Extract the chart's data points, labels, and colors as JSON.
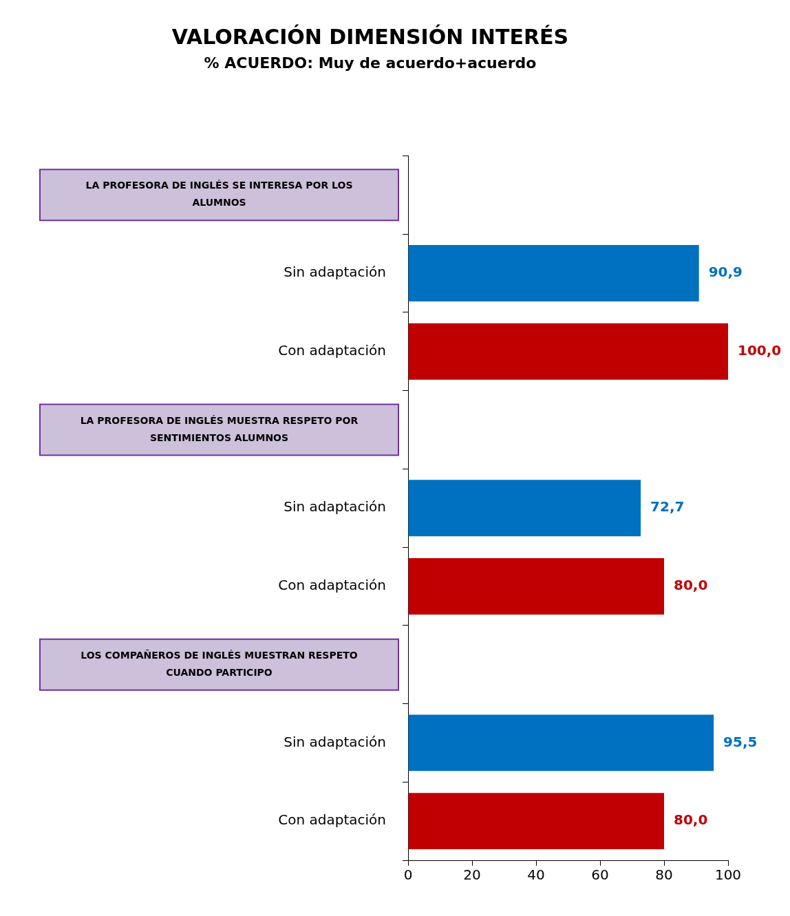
{
  "chart_data": {
    "type": "bar",
    "orientation": "horizontal",
    "title": "VALORACIÓN DIMENSIÓN INTERÉS",
    "subtitle": "% ACUERDO: Muy de acuerdo+acuerdo",
    "categories": [
      null,
      "Sin adaptación",
      "Con adaptación",
      null,
      "Sin adaptación",
      "Con adaptación",
      null,
      "Sin adaptación",
      "Con adaptación"
    ],
    "annotations": [
      "LA PROFESORA DE INGLÉS SE INTERESA POR LOS ALUMNOS",
      "LA PROFESORA DE INGLÉS MUESTRA RESPETO POR SENTIMIENTOS ALUMNOS",
      "LOS COMPAÑEROS DE INGLÉS MUESTRAN RESPETO CUANDO PARTICIPO"
    ],
    "values": [
      null,
      90.9,
      100,
      null,
      72.7,
      80,
      null,
      95.5,
      80
    ],
    "colors": [
      "#0070c0",
      "#0070c0",
      "#c00000",
      "#0070c0",
      "#0070c0",
      "#c00000",
      "#0070c0",
      "#0070c0",
      "#c00000"
    ],
    "value_labels": [
      null,
      "90,9",
      "100,0",
      null,
      "72,7",
      "80,0",
      null,
      "95,5",
      "80,0"
    ],
    "xlim": [
      0,
      100
    ],
    "xticks": [
      0,
      20,
      40,
      60,
      80,
      100
    ],
    "grid": false,
    "legend": false
  }
}
